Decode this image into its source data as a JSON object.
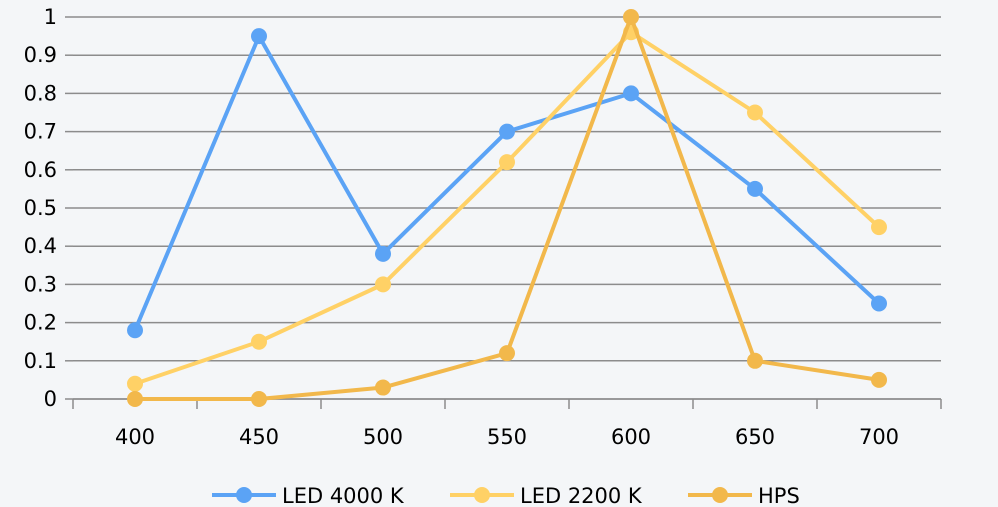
{
  "chart_data": {
    "type": "line",
    "x": [
      400,
      450,
      500,
      550,
      600,
      650,
      700
    ],
    "ylim": [
      0,
      1
    ],
    "yticks": [
      "0",
      "0.1",
      "0.2",
      "0.3",
      "0.4",
      "0.5",
      "0.6",
      "0.7",
      "0.8",
      "0.9",
      "1"
    ],
    "xticks": [
      "400",
      "450",
      "500",
      "550",
      "600",
      "650",
      "700"
    ],
    "grid": true,
    "legend_position": "bottom",
    "series": [
      {
        "name": "LED 4000 K",
        "color": "#5ba3f5",
        "values": [
          0.18,
          0.95,
          0.38,
          0.7,
          0.8,
          0.55,
          0.25
        ]
      },
      {
        "name": "LED 2200 K",
        "color": "#ffd166",
        "values": [
          0.04,
          0.15,
          0.3,
          0.62,
          0.96,
          0.75,
          0.45
        ]
      },
      {
        "name": "HPS",
        "color": "#f2b84b",
        "values": [
          0.0,
          0.0,
          0.03,
          0.12,
          1.0,
          0.1,
          0.05
        ]
      }
    ]
  }
}
